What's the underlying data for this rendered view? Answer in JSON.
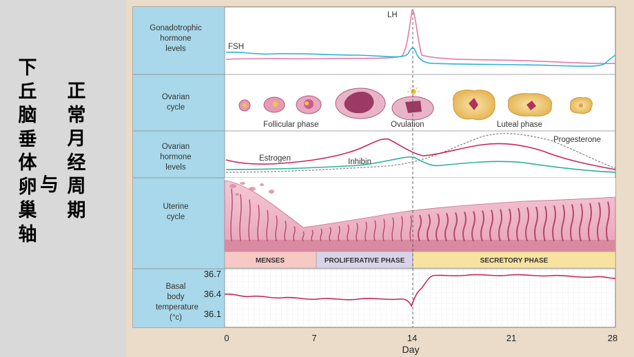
{
  "title_col1": [
    "下",
    "丘",
    "脑",
    "垂",
    "体",
    "卵",
    "巢",
    "轴"
  ],
  "title_col2": [
    "正",
    "常",
    "月",
    "经",
    "周",
    "期"
  ],
  "title_connector": "与",
  "rows": {
    "gonadotrophic": "Gonadotrophic hormone levels",
    "ovarian_cycle": "Ovarian cycle",
    "ovarian_hormone": "Ovarian hormone levels",
    "uterine": "Uterine cycle",
    "bbt": "Basal body temperature (°c)"
  },
  "curve_labels": {
    "lh": "LH",
    "fsh": "FSH",
    "estrogen": "Estrogen",
    "inhibin": "Inhibin",
    "progesterone": "Progesterone"
  },
  "ovarian_labels": {
    "follicular": "Follicular phase",
    "ovulation": "Ovulation",
    "luteal": "Luteal phase"
  },
  "phases": {
    "menses": "MENSES",
    "proliferative": "PROLIFERATIVE PHASE",
    "secretory": "SECRETORY PHASE"
  },
  "bbt_ticks": [
    "36.7",
    "36.4",
    "36.1"
  ],
  "day_ticks": [
    "0",
    "7",
    "14",
    "21",
    "28"
  ],
  "xlabel": "Day",
  "colors": {
    "lh": "#e27aa6",
    "fsh": "#2bb3d6",
    "estrogen": "#c8245f",
    "inhibin": "#2aae9e",
    "progesterone": "#888888",
    "bbt": "#c8245f",
    "label_bg": "#a8d8ea",
    "menses_bg": "#f7c9c4",
    "proliferative_bg": "#d9d3ea",
    "secretory_bg": "#f7e2a0"
  }
}
